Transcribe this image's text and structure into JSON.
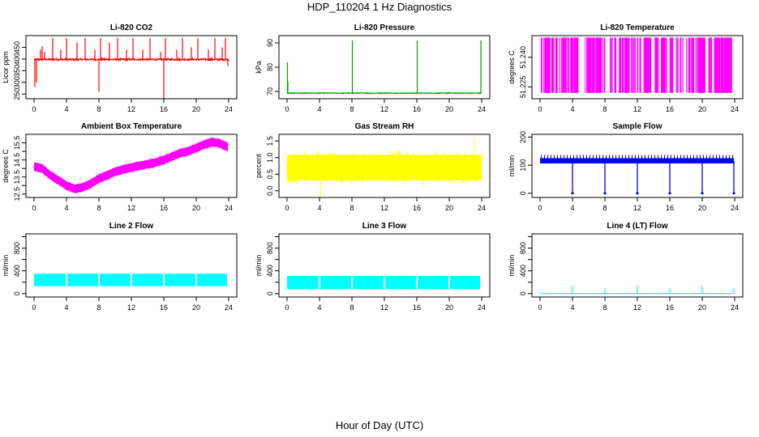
{
  "figure": {
    "title": "HDP_110204  1 Hz Diagnostics",
    "xlabel": "Hour of Day (UTC)"
  },
  "chart_data": [
    {
      "type": "line",
      "title": "Li-820 CO2",
      "ylabel": "Licor ppm",
      "color": "#ff0000",
      "xlim": [
        0,
        24
      ],
      "ylim": [
        230,
        500
      ],
      "xticks": [
        "0",
        "4",
        "8",
        "12",
        "16",
        "20",
        "24"
      ],
      "yticks": [
        "250",
        "300",
        "350",
        "400",
        "450"
      ],
      "baseline": 398,
      "band": 8,
      "spikes": [
        {
          "x": 0.1,
          "y": 280
        },
        {
          "x": 0.3,
          "y": 300
        },
        {
          "x": 0.8,
          "y": 440
        },
        {
          "x": 1.0,
          "y": 455
        },
        {
          "x": 1.3,
          "y": 430
        },
        {
          "x": 2.3,
          "y": 490
        },
        {
          "x": 3.3,
          "y": 440
        },
        {
          "x": 4.0,
          "y": 490
        },
        {
          "x": 5.3,
          "y": 470
        },
        {
          "x": 6.3,
          "y": 490
        },
        {
          "x": 7.5,
          "y": 440
        },
        {
          "x": 8.0,
          "y": 260
        },
        {
          "x": 8.2,
          "y": 490
        },
        {
          "x": 9.3,
          "y": 470
        },
        {
          "x": 10.3,
          "y": 490
        },
        {
          "x": 11.4,
          "y": 440
        },
        {
          "x": 12.2,
          "y": 490
        },
        {
          "x": 13.4,
          "y": 440
        },
        {
          "x": 14.3,
          "y": 490
        },
        {
          "x": 15.6,
          "y": 430
        },
        {
          "x": 16.0,
          "y": 230
        },
        {
          "x": 16.2,
          "y": 490
        },
        {
          "x": 17.6,
          "y": 440
        },
        {
          "x": 18.3,
          "y": 490
        },
        {
          "x": 19.4,
          "y": 450
        },
        {
          "x": 20.2,
          "y": 490
        },
        {
          "x": 21.5,
          "y": 440
        },
        {
          "x": 22.3,
          "y": 490
        },
        {
          "x": 23.2,
          "y": 450
        },
        {
          "x": 23.6,
          "y": 490
        },
        {
          "x": 23.9,
          "y": 370
        }
      ]
    },
    {
      "type": "line",
      "title": "Li-820 Pressure",
      "ylabel": "kPa",
      "color": "#00a000",
      "xlim": [
        0,
        24
      ],
      "ylim": [
        67,
        93
      ],
      "xticks": [
        "0",
        "4",
        "8",
        "12",
        "16",
        "20",
        "24"
      ],
      "yticks": [
        "70",
        "80",
        "90"
      ],
      "baseline": 69.3,
      "band": 0.3,
      "spikes": [
        {
          "x": 0.05,
          "y": 82
        },
        {
          "x": 0.1,
          "y": 74
        },
        {
          "x": 4.0,
          "y": 69.8
        },
        {
          "x": 8.05,
          "y": 91
        },
        {
          "x": 16.05,
          "y": 91
        },
        {
          "x": 20.0,
          "y": 69.8
        },
        {
          "x": 23.9,
          "y": 91
        }
      ]
    },
    {
      "type": "line",
      "title": "Li-820 Temperature",
      "ylabel": "degrees C",
      "color": "#ff00ff",
      "xlim": [
        0,
        24
      ],
      "ylim": [
        51.219,
        51.251
      ],
      "xticks": [
        "0",
        "4",
        "8",
        "12",
        "16",
        "20",
        "24"
      ],
      "yticks": [
        "51.225",
        "51.240"
      ],
      "values": [
        51.222,
        51.25
      ]
    },
    {
      "type": "line",
      "title": "Ambient Box Temperature",
      "ylabel": "degrees C",
      "color": "#ff00ff",
      "xlim": [
        0,
        24
      ],
      "ylim": [
        12.3,
        16.0
      ],
      "xticks": [
        "0",
        "4",
        "8",
        "12",
        "16",
        "20",
        "24"
      ],
      "yticks": [
        "12.5",
        "13.5",
        "14.5",
        "15.5"
      ],
      "yticks_minor": [
        "13.0",
        "14.0",
        "15.0"
      ],
      "x": [
        0,
        1,
        2,
        3,
        4,
        5,
        6,
        7,
        8,
        9,
        10,
        11,
        12,
        13,
        14,
        15,
        16,
        17,
        18,
        19,
        20,
        21,
        22,
        23,
        23.9
      ],
      "center": [
        14.1,
        14.0,
        13.6,
        13.3,
        13.0,
        12.8,
        12.9,
        13.1,
        13.4,
        13.6,
        13.8,
        13.95,
        14.05,
        14.15,
        14.25,
        14.35,
        14.5,
        14.7,
        14.9,
        15.0,
        15.2,
        15.4,
        15.55,
        15.45,
        15.25
      ],
      "band": 0.25
    },
    {
      "type": "line",
      "title": "Gas Stream RH",
      "ylabel": "percent",
      "color": "#ffff00",
      "xlim": [
        0,
        24
      ],
      "ylim": [
        -0.2,
        1.7
      ],
      "xticks": [
        "0",
        "4",
        "8",
        "12",
        "16",
        "20",
        "24"
      ],
      "yticks": [
        "0.0",
        "0.5",
        "1.0",
        "1.5"
      ],
      "center": 0.7,
      "band": 0.45,
      "outliers": [
        1.6,
        -0.2
      ]
    },
    {
      "type": "line",
      "title": "Sample Flow",
      "ylabel": "ml/min",
      "color": "#0000ff",
      "xlim": [
        0,
        24
      ],
      "ylim": [
        -15,
        210
      ],
      "xticks": [
        "0",
        "4",
        "8",
        "12",
        "16",
        "20",
        "24"
      ],
      "yticks": [
        "0",
        "100",
        "200"
      ],
      "levels": [
        125,
        115
      ],
      "dropouts": [
        4.0,
        8.0,
        12.0,
        16.0,
        20.0,
        23.9
      ],
      "drop_value": 0
    },
    {
      "type": "line",
      "title": "Line 2 Flow",
      "ylabel": "ml/min",
      "color": "#00ffff",
      "xlim": [
        0,
        24
      ],
      "ylim": [
        -60,
        1050
      ],
      "xticks": [
        "0",
        "4",
        "8",
        "12",
        "16",
        "20",
        "24"
      ],
      "yticks": [
        "0",
        "400",
        "800"
      ],
      "yticks_minor": [
        "200",
        "600",
        "1000"
      ],
      "range": [
        130,
        350
      ],
      "gaps": [
        4.0,
        8.0,
        12.0,
        16.0,
        20.0
      ]
    },
    {
      "type": "line",
      "title": "Line 3 Flow",
      "ylabel": "ml/min",
      "color": "#00ffff",
      "xlim": [
        0,
        24
      ],
      "ylim": [
        -60,
        1050
      ],
      "xticks": [
        "0",
        "4",
        "8",
        "12",
        "16",
        "20",
        "24"
      ],
      "yticks": [
        "0",
        "400",
        "800"
      ],
      "yticks_minor": [
        "200",
        "600",
        "1000"
      ],
      "range": [
        80,
        310
      ],
      "gaps": [
        4.0,
        8.0,
        12.0,
        16.0,
        20.0
      ]
    },
    {
      "type": "line",
      "title": "Line 4 (LT) Flow",
      "ylabel": "ml/min",
      "color": "#00ffff",
      "xlim": [
        0,
        24
      ],
      "ylim": [
        -60,
        1050
      ],
      "xticks": [
        "0",
        "4",
        "8",
        "12",
        "16",
        "20",
        "24"
      ],
      "yticks": [
        "0",
        "400",
        "800"
      ],
      "yticks_minor": [
        "200",
        "600",
        "1000"
      ],
      "baseline": 0,
      "spikes": [
        {
          "x": 4.0,
          "y": 140
        },
        {
          "x": 8.0,
          "y": 90
        },
        {
          "x": 12.0,
          "y": 140
        },
        {
          "x": 16.0,
          "y": 90
        },
        {
          "x": 20.0,
          "y": 140
        },
        {
          "x": 23.9,
          "y": 90
        }
      ]
    }
  ]
}
